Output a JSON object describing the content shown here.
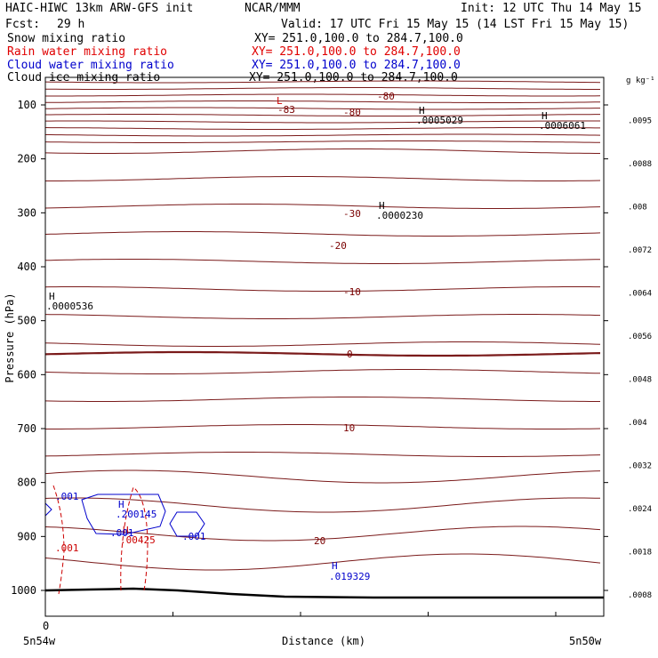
{
  "header": {
    "model": "HAIC-HIWC 13km ARW-GFS init",
    "org": "NCAR/MMM",
    "init": "Init: 12 UTC Thu 14 May 15",
    "fcst_label": "Fcst:",
    "fcst_value": "29 h",
    "valid": "Valid: 17 UTC Fri 15 May 15 (14 LST Fri 15 May 15)"
  },
  "fields": [
    {
      "name": "Snow mixing ratio",
      "xy": "XY= 251.0,100.0 to 284.7,100.0",
      "color": "#000000"
    },
    {
      "name": "Rain water mixing ratio",
      "xy": "XY= 251.0,100.0 to 284.7,100.0",
      "color": "#e00000"
    },
    {
      "name": "Cloud water mixing ratio",
      "xy": "XY= 251.0,100.0 to 284.7,100.0",
      "color": "#0000cc"
    },
    {
      "name": "Cloud ice mixing ratio",
      "xy": "XY= 251.0,100.0 to 284.7,100.0",
      "color": "#000000"
    }
  ],
  "chart_data": {
    "type": "contour cross-section",
    "xlabel": "Distance (km)",
    "ylabel": "Pressure (hPa)",
    "x_ticks": [
      "0",
      "5n54w",
      "5n50w"
    ],
    "y_ticks": [
      100,
      200,
      300,
      400,
      500,
      600,
      700,
      800,
      900,
      1000
    ],
    "ylim": [
      1060,
      50
    ],
    "colorbar": {
      "unit": "g kg⁻¹",
      "ticks": [
        ".0095",
        ".0088",
        ".008",
        ".0072",
        ".0064",
        ".0056",
        ".0048",
        ".004",
        ".0032",
        ".0024",
        ".0018",
        ".0008"
      ]
    },
    "contour_labels": [
      {
        "text": "-80",
        "color": "#7a0000"
      },
      {
        "text": "-83",
        "color": "#7a0000"
      },
      {
        "text": "-80",
        "color": "#7a0000"
      },
      {
        "text": "-30",
        "color": "#7a0000"
      },
      {
        "text": "-20",
        "color": "#7a0000"
      },
      {
        "text": "-10",
        "color": "#7a0000"
      },
      {
        "text": "0",
        "color": "#7a0000"
      },
      {
        "text": "10",
        "color": "#7a0000"
      },
      {
        "text": "20",
        "color": "#7a0000"
      },
      {
        "text": "L",
        "color": "#cc0000"
      },
      {
        "text": ".001",
        "color": "#0000cc"
      },
      {
        "text": ".200145",
        "color": "#0000cc"
      },
      {
        "text": ".001",
        "color": "#0000cc"
      },
      {
        "text": ".001",
        "color": "#0000cc"
      },
      {
        "text": ".019329",
        "color": "#0000cc"
      },
      {
        "text": ".001",
        "color": "#cc0000"
      },
      {
        "text": ".00425",
        "color": "#cc0000"
      }
    ],
    "extrema": [
      {
        "mark": "H",
        "value": ".0005029",
        "color": "#000000"
      },
      {
        "mark": "H",
        "value": ".0006061",
        "color": "#000000"
      },
      {
        "mark": "H",
        "value": ".0000230",
        "color": "#000000"
      },
      {
        "mark": "H",
        "value": ".0000536",
        "color": "#000000"
      },
      {
        "mark": "H",
        "value": "",
        "color": "#0000cc"
      },
      {
        "mark": "H",
        "value": "",
        "color": "#cc0000"
      },
      {
        "mark": "H",
        "value": "",
        "color": "#0000cc"
      }
    ]
  }
}
